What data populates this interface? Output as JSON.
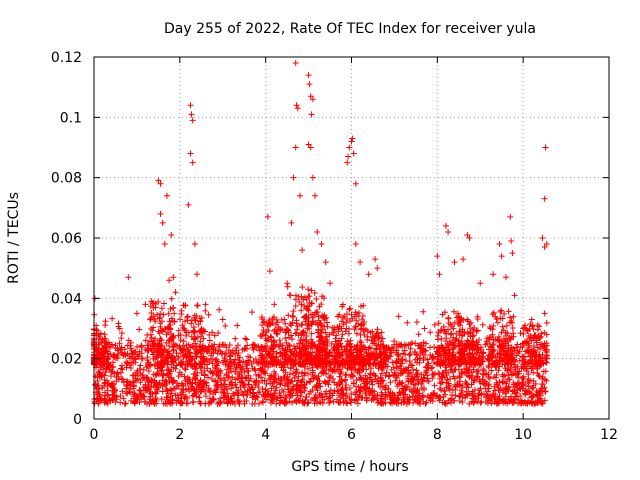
{
  "chart_data": {
    "type": "scatter",
    "title": "Day 255 of 2022, Rate Of TEC Index for receiver yula",
    "xlabel": "GPS time / hours",
    "ylabel": "ROTI / TECUs",
    "xlim": [
      0,
      12
    ],
    "ylim": [
      0,
      0.12
    ],
    "x_ticks": [
      0,
      2,
      4,
      6,
      8,
      10,
      12
    ],
    "x_tick_labels": [
      "0",
      "2",
      "4",
      "6",
      "8",
      "10",
      "12"
    ],
    "y_ticks": [
      0,
      0.02,
      0.04,
      0.06,
      0.08,
      0.1,
      0.12
    ],
    "y_tick_labels": [
      "0",
      "0.02",
      "0.04",
      "0.06",
      "0.08",
      "0.1",
      "0.12"
    ],
    "grid": true,
    "marker": "+",
    "series": [
      {
        "name": "ROTI",
        "color": "#ff0000",
        "x_range": [
          0,
          10.55
        ],
        "baseline_range": [
          0.005,
          0.025
        ],
        "points": [
          [
            0.02,
            0.04
          ],
          [
            0.05,
            0.031
          ],
          [
            0.1,
            0.028
          ],
          [
            0.3,
            0.025
          ],
          [
            0.6,
            0.03
          ],
          [
            0.8,
            0.047
          ],
          [
            1.0,
            0.035
          ],
          [
            1.2,
            0.038
          ],
          [
            1.5,
            0.079
          ],
          [
            1.55,
            0.078
          ],
          [
            1.55,
            0.068
          ],
          [
            1.6,
            0.065
          ],
          [
            1.65,
            0.058
          ],
          [
            1.7,
            0.074
          ],
          [
            1.75,
            0.046
          ],
          [
            1.8,
            0.061
          ],
          [
            1.85,
            0.047
          ],
          [
            1.9,
            0.042
          ],
          [
            2.2,
            0.071
          ],
          [
            2.25,
            0.088
          ],
          [
            2.25,
            0.104
          ],
          [
            2.27,
            0.101
          ],
          [
            2.3,
            0.099
          ],
          [
            2.3,
            0.085
          ],
          [
            2.35,
            0.058
          ],
          [
            2.4,
            0.048
          ],
          [
            2.6,
            0.038
          ],
          [
            3.0,
            0.033
          ],
          [
            4.05,
            0.067
          ],
          [
            4.1,
            0.049
          ],
          [
            4.2,
            0.038
          ],
          [
            4.5,
            0.045
          ],
          [
            4.6,
            0.065
          ],
          [
            4.65,
            0.08
          ],
          [
            4.7,
            0.09
          ],
          [
            4.7,
            0.118
          ],
          [
            4.72,
            0.104
          ],
          [
            4.75,
            0.103
          ],
          [
            4.8,
            0.074
          ],
          [
            4.85,
            0.056
          ],
          [
            5.0,
            0.114
          ],
          [
            5.02,
            0.111
          ],
          [
            5.05,
            0.107
          ],
          [
            5.07,
            0.101
          ],
          [
            5.1,
            0.106
          ],
          [
            5.0,
            0.091
          ],
          [
            5.05,
            0.09
          ],
          [
            5.1,
            0.08
          ],
          [
            5.15,
            0.074
          ],
          [
            5.2,
            0.062
          ],
          [
            5.3,
            0.058
          ],
          [
            5.4,
            0.052
          ],
          [
            5.5,
            0.045
          ],
          [
            5.9,
            0.085
          ],
          [
            5.92,
            0.087
          ],
          [
            5.95,
            0.09
          ],
          [
            6.0,
            0.092
          ],
          [
            6.02,
            0.093
          ],
          [
            6.05,
            0.088
          ],
          [
            6.1,
            0.078
          ],
          [
            6.1,
            0.058
          ],
          [
            6.2,
            0.052
          ],
          [
            6.4,
            0.048
          ],
          [
            6.55,
            0.053
          ],
          [
            6.6,
            0.05
          ],
          [
            7.1,
            0.034
          ],
          [
            7.7,
            0.03
          ],
          [
            8.0,
            0.054
          ],
          [
            8.05,
            0.048
          ],
          [
            8.2,
            0.064
          ],
          [
            8.25,
            0.062
          ],
          [
            8.4,
            0.052
          ],
          [
            8.6,
            0.053
          ],
          [
            8.7,
            0.061
          ],
          [
            8.75,
            0.06
          ],
          [
            9.0,
            0.045
          ],
          [
            9.3,
            0.048
          ],
          [
            9.45,
            0.058
          ],
          [
            9.5,
            0.054
          ],
          [
            9.6,
            0.047
          ],
          [
            9.7,
            0.067
          ],
          [
            9.72,
            0.059
          ],
          [
            9.75,
            0.055
          ],
          [
            9.8,
            0.041
          ],
          [
            10.0,
            0.03
          ],
          [
            10.2,
            0.033
          ],
          [
            10.45,
            0.06
          ],
          [
            10.5,
            0.057
          ],
          [
            10.5,
            0.073
          ],
          [
            10.52,
            0.09
          ],
          [
            10.55,
            0.058
          ],
          [
            10.5,
            0.035
          ]
        ]
      }
    ]
  }
}
